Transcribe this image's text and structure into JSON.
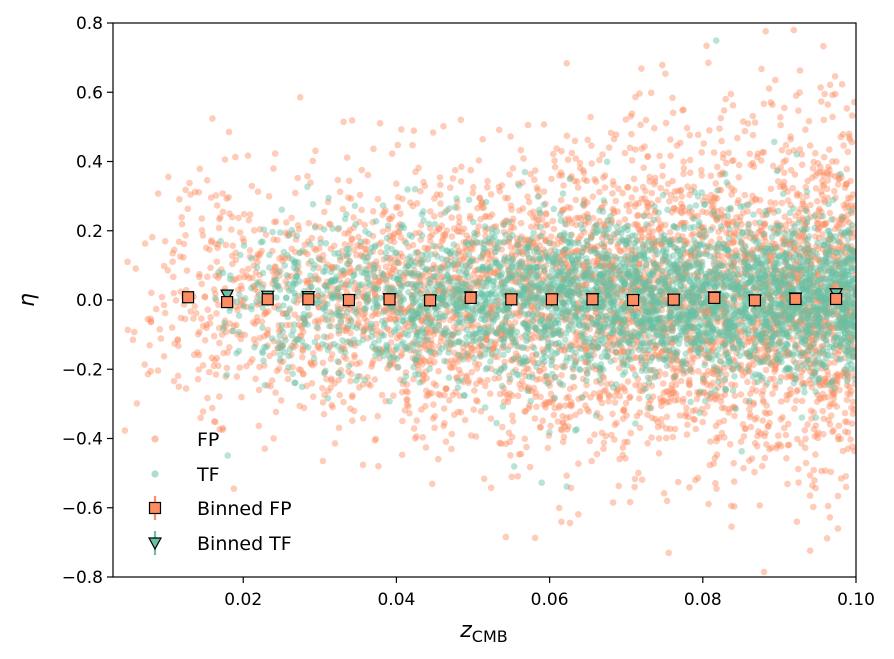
{
  "chart_data": {
    "type": "scatter",
    "title": "",
    "xlabel": "z",
    "xlabel_subscript": "CMB",
    "ylabel": "η",
    "xlim": [
      0.003,
      0.1
    ],
    "ylim": [
      -0.8,
      0.8
    ],
    "x_ticks": [
      0.02,
      0.04,
      0.06,
      0.08,
      0.1
    ],
    "x_tick_labels": [
      "0.02",
      "0.04",
      "0.06",
      "0.08",
      "0.10"
    ],
    "y_ticks": [
      -0.8,
      -0.6,
      -0.4,
      -0.2,
      0.0,
      0.2,
      0.4,
      0.6,
      0.8
    ],
    "y_tick_labels": [
      "−0.8",
      "−0.6",
      "−0.4",
      "−0.2",
      "0.0",
      "0.2",
      "0.4",
      "0.6",
      "0.8"
    ],
    "legend_position": "lower-left",
    "colors": {
      "fp": "#fc8d62",
      "tf": "#66c2a5"
    },
    "series": [
      {
        "name": "FP",
        "kind": "scatter",
        "label": "FP",
        "x_range": [
          0.004,
          0.1
        ],
        "y_spread": 0.2,
        "approx_points": 4500
      },
      {
        "name": "TF",
        "kind": "scatter",
        "label": "TF",
        "x_range": [
          0.016,
          0.1
        ],
        "y_spread": 0.11,
        "approx_points": 3500
      },
      {
        "name": "Binned FP",
        "kind": "binned",
        "label": "Binned FP",
        "marker": "square",
        "x": [
          0.0128,
          0.0179,
          0.0232,
          0.0285,
          0.0338,
          0.0391,
          0.0444,
          0.0497,
          0.055,
          0.0603,
          0.0656,
          0.0709,
          0.0762,
          0.0815,
          0.0868,
          0.0921,
          0.0974
        ],
        "y": [
          0.008,
          -0.006,
          0.002,
          0.002,
          0.0,
          0.002,
          -0.001,
          0.006,
          0.002,
          0.002,
          0.002,
          0.0,
          0.001,
          0.006,
          -0.001,
          0.003,
          0.003
        ],
        "yerr": [
          0.015,
          0.012,
          0.008,
          0.006,
          0.005,
          0.005,
          0.005,
          0.005,
          0.005,
          0.005,
          0.005,
          0.005,
          0.005,
          0.006,
          0.006,
          0.006,
          0.006
        ]
      },
      {
        "name": "Binned TF",
        "kind": "binned",
        "label": "Binned TF",
        "marker": "triangle-down",
        "x": [
          0.0179,
          0.0232,
          0.0285,
          0.0338,
          0.0391,
          0.0444,
          0.0497,
          0.055,
          0.0603,
          0.0656,
          0.0709,
          0.0762,
          0.0815,
          0.0868,
          0.0921,
          0.0974
        ],
        "y": [
          0.014,
          0.011,
          0.01,
          0.0,
          0.004,
          -0.001,
          0.009,
          0.002,
          0.002,
          0.004,
          0.0,
          0.002,
          0.009,
          -0.001,
          0.006,
          0.018
        ],
        "yerr": [
          0.015,
          0.01,
          0.008,
          0.007,
          0.006,
          0.006,
          0.006,
          0.006,
          0.006,
          0.006,
          0.006,
          0.006,
          0.007,
          0.007,
          0.007,
          0.008
        ]
      }
    ]
  }
}
